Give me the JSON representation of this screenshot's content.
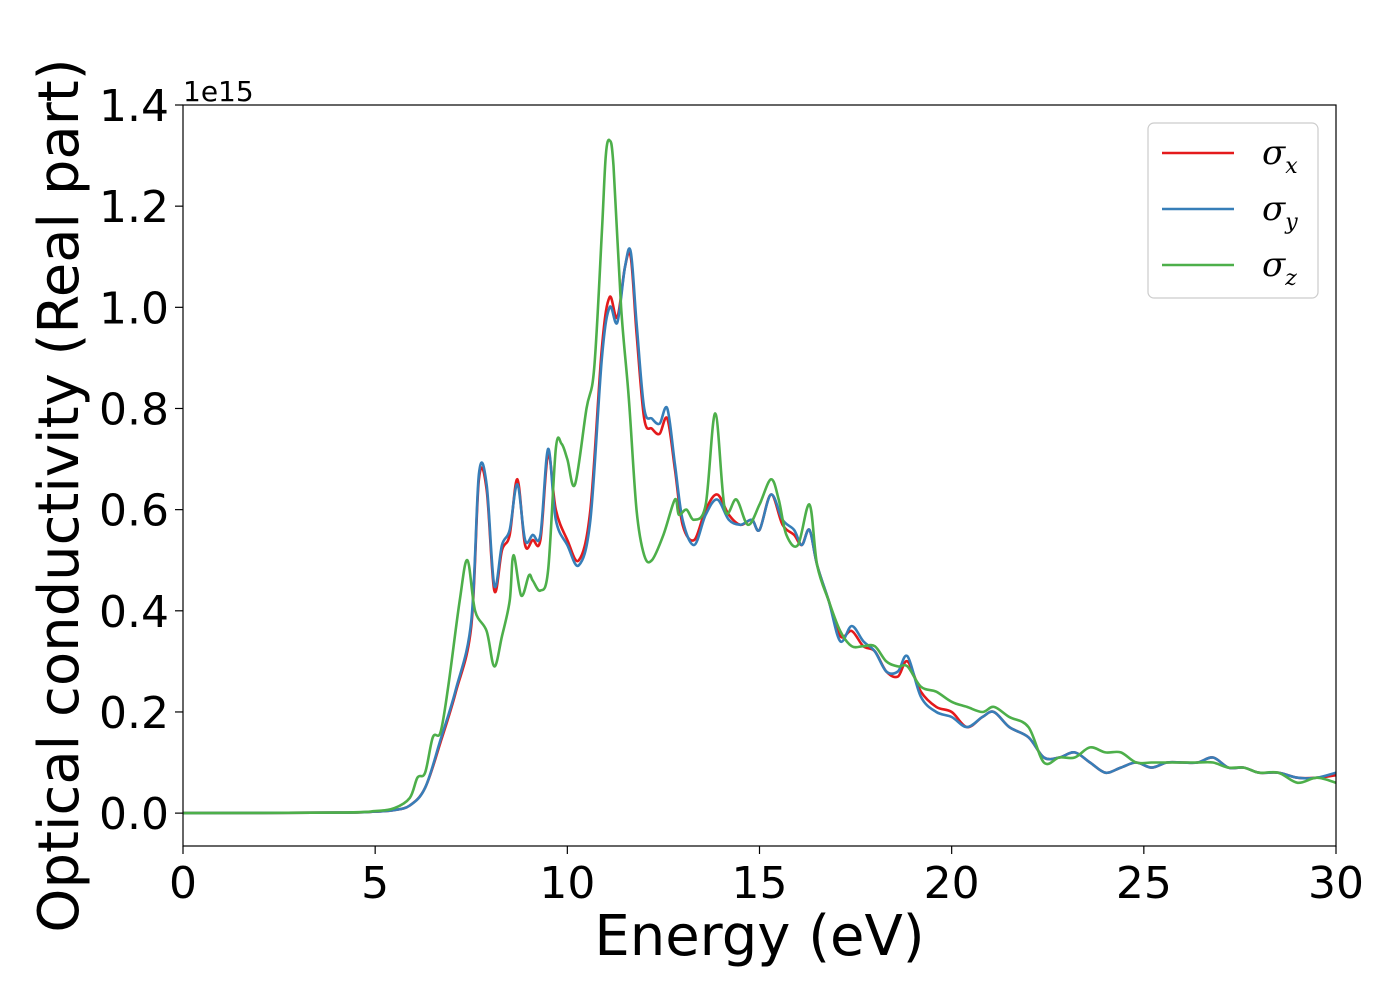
{
  "chart_data": {
    "type": "line",
    "xlabel": "Energy (eV)",
    "ylabel": "Optical conductivity (Real part)",
    "y_offset_label": "1e15",
    "y_scale": 1000000000000000.0,
    "xlim": [
      0,
      30
    ],
    "ylim": [
      -0.065,
      1.4
    ],
    "x_ticks": [
      0,
      5,
      10,
      15,
      20,
      25,
      30
    ],
    "x_tick_labels": [
      "0",
      "5",
      "10",
      "15",
      "20",
      "25",
      "30"
    ],
    "y_ticks": [
      0.0,
      0.2,
      0.4,
      0.6,
      0.8,
      1.0,
      1.2,
      1.4
    ],
    "y_tick_labels": [
      "0.0",
      "0.2",
      "0.4",
      "0.6",
      "0.8",
      "1.0",
      "1.2",
      "1.4"
    ],
    "grid": false,
    "legend_position": "top-right",
    "series": [
      {
        "name": "σx",
        "symbol": "σ",
        "subscript": "x",
        "color": "#e41a1c",
        "x": [
          0,
          4,
          5,
          5.5,
          5.9,
          6.3,
          6.7,
          7.1,
          7.5,
          7.7,
          7.9,
          8.1,
          8.3,
          8.5,
          8.7,
          8.9,
          9.1,
          9.3,
          9.5,
          9.7,
          10.0,
          10.3,
          10.6,
          10.9,
          11.1,
          11.3,
          11.5,
          11.65,
          11.8,
          12.0,
          12.2,
          12.4,
          12.6,
          12.8,
          13.0,
          13.3,
          13.6,
          13.9,
          14.2,
          14.5,
          14.8,
          15.0,
          15.3,
          15.6,
          15.9,
          16.1,
          16.3,
          16.5,
          16.8,
          17.1,
          17.4,
          17.7,
          18.0,
          18.3,
          18.6,
          18.85,
          19.2,
          19.6,
          20.0,
          20.4,
          20.8,
          21.1,
          21.5,
          22.0,
          22.4,
          22.8,
          23.2,
          23.6,
          24.0,
          24.4,
          24.8,
          25.2,
          25.6,
          26.0,
          26.4,
          26.8,
          27.2,
          27.6,
          28.0,
          28.5,
          29.0,
          29.5,
          30.0
        ],
        "values": [
          0,
          0.001,
          0.003,
          0.006,
          0.015,
          0.05,
          0.14,
          0.24,
          0.37,
          0.66,
          0.64,
          0.44,
          0.52,
          0.55,
          0.66,
          0.53,
          0.54,
          0.54,
          0.71,
          0.6,
          0.54,
          0.5,
          0.6,
          0.92,
          1.02,
          0.98,
          1.08,
          1.1,
          0.95,
          0.78,
          0.76,
          0.75,
          0.78,
          0.68,
          0.57,
          0.54,
          0.6,
          0.63,
          0.59,
          0.57,
          0.58,
          0.56,
          0.63,
          0.57,
          0.55,
          0.53,
          0.56,
          0.49,
          0.42,
          0.35,
          0.36,
          0.33,
          0.32,
          0.28,
          0.27,
          0.3,
          0.24,
          0.21,
          0.2,
          0.17,
          0.19,
          0.2,
          0.17,
          0.15,
          0.11,
          0.11,
          0.12,
          0.1,
          0.08,
          0.09,
          0.1,
          0.09,
          0.1,
          0.1,
          0.1,
          0.11,
          0.09,
          0.09,
          0.08,
          0.08,
          0.07,
          0.07,
          0.075
        ]
      },
      {
        "name": "σy",
        "symbol": "σ",
        "subscript": "y",
        "color": "#377eb8",
        "x": [
          0,
          4,
          5,
          5.5,
          5.9,
          6.3,
          6.7,
          7.1,
          7.5,
          7.7,
          7.9,
          8.1,
          8.3,
          8.5,
          8.7,
          8.9,
          9.1,
          9.3,
          9.5,
          9.7,
          10.0,
          10.3,
          10.6,
          10.9,
          11.1,
          11.3,
          11.5,
          11.65,
          11.8,
          12.0,
          12.2,
          12.4,
          12.6,
          12.8,
          13.0,
          13.3,
          13.6,
          13.9,
          14.2,
          14.5,
          14.8,
          15.0,
          15.3,
          15.6,
          15.9,
          16.1,
          16.3,
          16.5,
          16.8,
          17.1,
          17.4,
          17.7,
          18.0,
          18.3,
          18.6,
          18.85,
          19.2,
          19.6,
          20.0,
          20.4,
          20.8,
          21.1,
          21.5,
          22.0,
          22.4,
          22.8,
          23.2,
          23.6,
          24.0,
          24.4,
          24.8,
          25.2,
          25.6,
          26.0,
          26.4,
          26.8,
          27.2,
          27.6,
          28.0,
          28.5,
          29.0,
          29.5,
          30.0
        ],
        "values": [
          0,
          0.001,
          0.003,
          0.006,
          0.015,
          0.05,
          0.145,
          0.245,
          0.38,
          0.67,
          0.65,
          0.45,
          0.53,
          0.56,
          0.65,
          0.54,
          0.55,
          0.55,
          0.72,
          0.58,
          0.53,
          0.49,
          0.58,
          0.9,
          1.0,
          0.97,
          1.08,
          1.11,
          0.97,
          0.8,
          0.78,
          0.77,
          0.8,
          0.69,
          0.58,
          0.53,
          0.59,
          0.62,
          0.58,
          0.57,
          0.58,
          0.56,
          0.63,
          0.58,
          0.56,
          0.53,
          0.56,
          0.49,
          0.42,
          0.34,
          0.37,
          0.34,
          0.32,
          0.28,
          0.28,
          0.31,
          0.23,
          0.2,
          0.19,
          0.17,
          0.19,
          0.2,
          0.17,
          0.15,
          0.11,
          0.11,
          0.12,
          0.1,
          0.08,
          0.09,
          0.1,
          0.09,
          0.1,
          0.1,
          0.1,
          0.11,
          0.09,
          0.09,
          0.08,
          0.08,
          0.07,
          0.07,
          0.08
        ]
      },
      {
        "name": "σz",
        "symbol": "σ",
        "subscript": "z",
        "color": "#4daf4a",
        "x": [
          0,
          4,
          5,
          5.5,
          5.9,
          6.1,
          6.3,
          6.5,
          6.7,
          6.9,
          7.2,
          7.4,
          7.6,
          7.9,
          8.1,
          8.3,
          8.5,
          8.6,
          8.8,
          9.0,
          9.1,
          9.3,
          9.5,
          9.7,
          9.85,
          10.0,
          10.2,
          10.5,
          10.7,
          10.9,
          11.0,
          11.1,
          11.2,
          11.4,
          11.6,
          11.8,
          12.0,
          12.2,
          12.5,
          12.8,
          12.9,
          13.1,
          13.3,
          13.6,
          13.85,
          14.1,
          14.4,
          14.7,
          15.0,
          15.3,
          15.5,
          15.7,
          16.0,
          16.3,
          16.5,
          16.8,
          17.1,
          17.4,
          17.7,
          18.0,
          18.3,
          18.6,
          18.85,
          19.2,
          19.6,
          20.0,
          20.4,
          20.8,
          21.1,
          21.5,
          22.0,
          22.4,
          22.8,
          23.2,
          23.6,
          24.0,
          24.4,
          24.8,
          25.2,
          25.6,
          26.0,
          26.4,
          26.8,
          27.2,
          27.6,
          28.0,
          28.5,
          29.0,
          29.5,
          30.0
        ],
        "values": [
          0,
          0.001,
          0.004,
          0.01,
          0.03,
          0.07,
          0.08,
          0.15,
          0.16,
          0.25,
          0.42,
          0.5,
          0.4,
          0.36,
          0.29,
          0.35,
          0.42,
          0.51,
          0.43,
          0.47,
          0.46,
          0.44,
          0.48,
          0.72,
          0.73,
          0.7,
          0.65,
          0.8,
          0.88,
          1.15,
          1.3,
          1.33,
          1.28,
          1.0,
          0.82,
          0.6,
          0.51,
          0.5,
          0.55,
          0.62,
          0.59,
          0.6,
          0.58,
          0.61,
          0.79,
          0.6,
          0.62,
          0.57,
          0.61,
          0.66,
          0.62,
          0.55,
          0.53,
          0.61,
          0.49,
          0.42,
          0.36,
          0.33,
          0.33,
          0.33,
          0.3,
          0.29,
          0.29,
          0.25,
          0.24,
          0.22,
          0.21,
          0.2,
          0.21,
          0.19,
          0.17,
          0.1,
          0.11,
          0.11,
          0.13,
          0.12,
          0.12,
          0.1,
          0.1,
          0.1,
          0.1,
          0.1,
          0.1,
          0.09,
          0.09,
          0.08,
          0.08,
          0.06,
          0.07,
          0.06
        ]
      }
    ]
  }
}
